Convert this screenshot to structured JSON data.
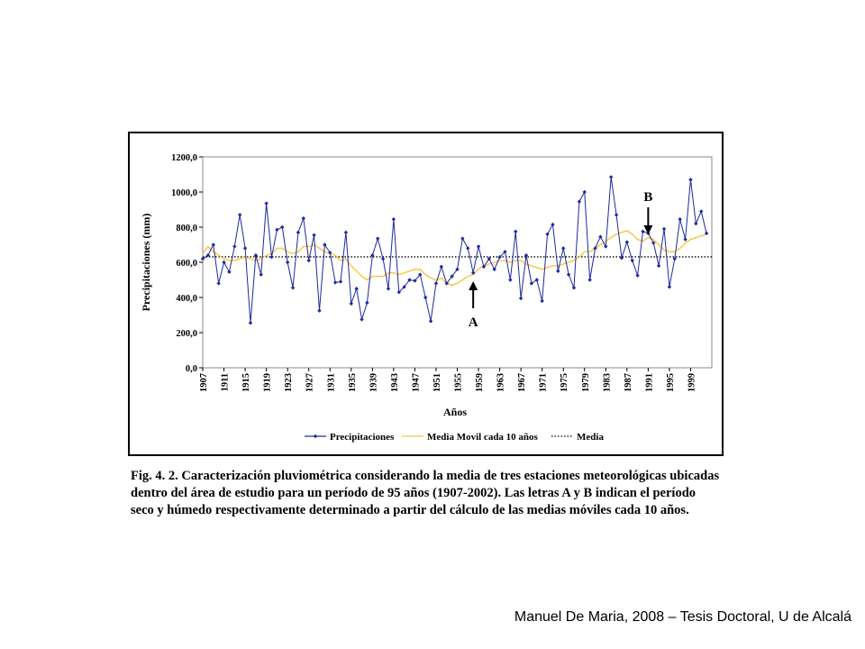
{
  "chart_data": {
    "type": "line",
    "y_label": "Precipitaciones (mm)",
    "x_label": "Años",
    "x": [
      1907,
      1908,
      1909,
      1910,
      1911,
      1912,
      1913,
      1914,
      1915,
      1916,
      1917,
      1918,
      1919,
      1920,
      1921,
      1922,
      1923,
      1924,
      1925,
      1926,
      1927,
      1928,
      1929,
      1930,
      1931,
      1932,
      1933,
      1934,
      1935,
      1936,
      1937,
      1938,
      1939,
      1940,
      1941,
      1942,
      1943,
      1944,
      1945,
      1946,
      1947,
      1948,
      1949,
      1950,
      1951,
      1952,
      1953,
      1954,
      1955,
      1956,
      1957,
      1958,
      1959,
      1960,
      1961,
      1962,
      1963,
      1964,
      1965,
      1966,
      1967,
      1968,
      1969,
      1970,
      1971,
      1972,
      1973,
      1974,
      1975,
      1976,
      1977,
      1978,
      1979,
      1980,
      1981,
      1982,
      1983,
      1984,
      1985,
      1986,
      1987,
      1988,
      1989,
      1990,
      1991,
      1992,
      1993,
      1994,
      1995,
      1996,
      1997,
      1998,
      1999,
      2000,
      2001,
      2002
    ],
    "series": [
      {
        "name": "Precipitaciones",
        "color": "#1c2a9c",
        "marker": true,
        "values": [
          620,
          640,
          700,
          480,
          600,
          545,
          690,
          870,
          680,
          255,
          640,
          530,
          935,
          630,
          785,
          800,
          600,
          455,
          770,
          850,
          610,
          755,
          325,
          700,
          655,
          485,
          490,
          770,
          365,
          450,
          275,
          370,
          640,
          735,
          620,
          450,
          845,
          430,
          460,
          500,
          495,
          530,
          400,
          265,
          480,
          575,
          480,
          520,
          560,
          735,
          680,
          540,
          690,
          575,
          620,
          560,
          630,
          660,
          500,
          775,
          395,
          640,
          480,
          500,
          380,
          760,
          815,
          550,
          680,
          530,
          455,
          945,
          1000,
          500,
          680,
          745,
          690,
          1085,
          870,
          625,
          715,
          610,
          525,
          775,
          765,
          710,
          580,
          790,
          460,
          620,
          845,
          730,
          1070,
          820,
          890,
          765
        ]
      },
      {
        "name": "Media Movil cada 10 años",
        "color": "#f5c642",
        "marker": false,
        "values": [
          650,
          690,
          660,
          640,
          620,
          610,
          610,
          620,
          630,
          620,
          610,
          620,
          640,
          650,
          680,
          680,
          660,
          650,
          660,
          690,
          690,
          700,
          680,
          660,
          650,
          640,
          610,
          620,
          580,
          550,
          520,
          500,
          520,
          520,
          520,
          540,
          540,
          530,
          540,
          550,
          560,
          560,
          530,
          510,
          500,
          510,
          480,
          470,
          480,
          500,
          520,
          530,
          560,
          580,
          590,
          600,
          610,
          610,
          600,
          610,
          610,
          590,
          580,
          570,
          560,
          570,
          580,
          580,
          590,
          600,
          610,
          630,
          660,
          660,
          680,
          700,
          720,
          740,
          760,
          770,
          780,
          760,
          730,
          720,
          740,
          730,
          700,
          670,
          660,
          660,
          680,
          710,
          730,
          740,
          750,
          760
        ]
      }
    ],
    "mean": {
      "name": "Media",
      "value": 631,
      "color": "#000000"
    },
    "xlim": [
      1907,
      2003
    ],
    "xticks": [
      1907,
      1911,
      1915,
      1919,
      1923,
      1927,
      1931,
      1935,
      1939,
      1943,
      1947,
      1951,
      1955,
      1959,
      1963,
      1967,
      1971,
      1975,
      1979,
      1983,
      1987,
      1991,
      1995,
      1999
    ],
    "ylim": [
      0,
      1200
    ],
    "yticks": [
      {
        "value": 0,
        "label": "0,0"
      },
      {
        "value": 200,
        "label": "200,0"
      },
      {
        "value": 400,
        "label": "400,0"
      },
      {
        "value": 600,
        "label": "600,0"
      },
      {
        "value": 800,
        "label": "800,0"
      },
      {
        "value": 1000,
        "label": "1000,0"
      },
      {
        "value": 1200,
        "label": "1200,0"
      }
    ],
    "annotations": [
      {
        "text": "A",
        "x": 1958,
        "direction": "up"
      },
      {
        "text": "B",
        "x": 1991,
        "direction": "down"
      }
    ]
  },
  "caption": [
    "Fig. 4. 2. Caracterización pluviométrica considerando la media de tres estaciones meteorológicas ubicadas",
    "dentro del área de estudio para un período de 95 años (1907-2002). Las letras A y B indican el período",
    "seco y húmedo respectivamente determinado a partir del cálculo de las medias móviles cada 10 años."
  ],
  "footer": "Manuel De Maria, 2008 – Tesis Doctoral, U de Alcalá"
}
